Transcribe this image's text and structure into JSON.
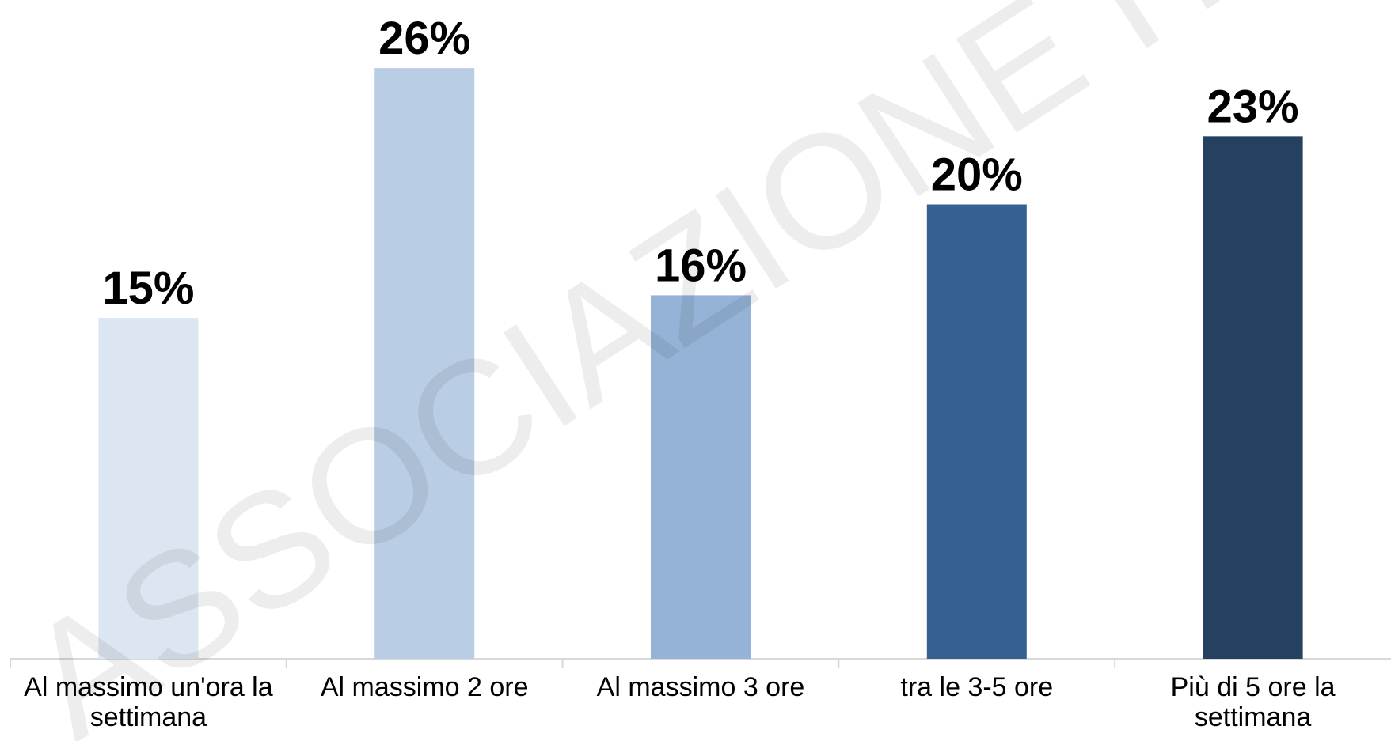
{
  "chart_data": {
    "type": "bar",
    "categories": [
      "Al massimo un'ora la settimana",
      "Al massimo 2 ore",
      "Al massimo 3 ore",
      "tra le 3-5 ore",
      "Più di 5 ore la settimana"
    ],
    "values": [
      15,
      26,
      16,
      20,
      23
    ],
    "value_labels": [
      "15%",
      "26%",
      "16%",
      "20%",
      "23%"
    ],
    "colors": [
      "#dce6f2",
      "#b9cde5",
      "#95b3d7",
      "#376092",
      "#26405f"
    ],
    "ylim": [
      0,
      29
    ],
    "watermark": "ASSOCIAZIONE ITALIANA E"
  }
}
